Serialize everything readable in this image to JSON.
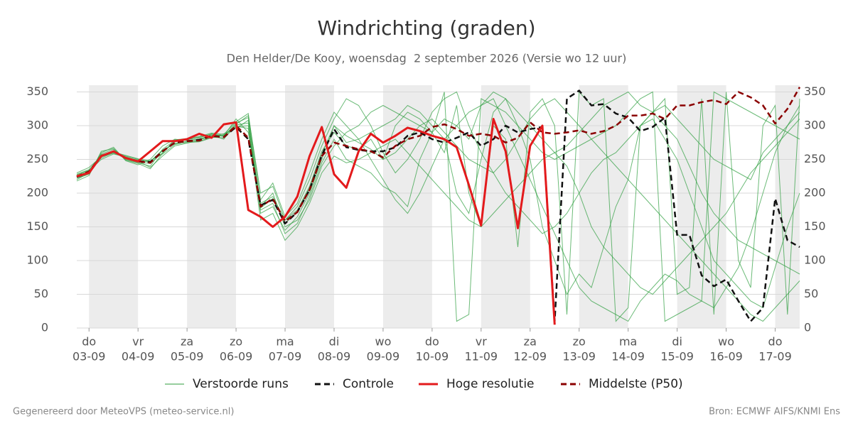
{
  "chart_data": {
    "type": "line",
    "title": "Windrichting (graden)",
    "subtitle": "Den Helder/De Kooy, woensdag  2 september 2026 (Versie wo 12 uur)",
    "footer_left": "Gegenereerd door MeteoVPS (meteo-service.nl)",
    "footer_right": "Bron: ECMWF AIFS/KNMI Ens",
    "xlim": [
      "2026-09-02T18:00",
      "2026-09-17T12:00"
    ],
    "x_start": "2026-09-02T18:00",
    "x_step_hours": 6,
    "xticks": [
      {
        "value": "2026-09-03T00:00",
        "label": [
          "do",
          "03-09"
        ]
      },
      {
        "value": "2026-09-04T00:00",
        "label": [
          "vr",
          "04-09"
        ]
      },
      {
        "value": "2026-09-05T00:00",
        "label": [
          "za",
          "05-09"
        ]
      },
      {
        "value": "2026-09-06T00:00",
        "label": [
          "zo",
          "06-09"
        ]
      },
      {
        "value": "2026-09-07T00:00",
        "label": [
          "ma",
          "07-09"
        ]
      },
      {
        "value": "2026-09-08T00:00",
        "label": [
          "di",
          "08-09"
        ]
      },
      {
        "value": "2026-09-09T00:00",
        "label": [
          "wo",
          "09-09"
        ]
      },
      {
        "value": "2026-09-10T00:00",
        "label": [
          "do",
          "10-09"
        ]
      },
      {
        "value": "2026-09-11T00:00",
        "label": [
          "vr",
          "11-09"
        ]
      },
      {
        "value": "2026-09-12T00:00",
        "label": [
          "za",
          "12-09"
        ]
      },
      {
        "value": "2026-09-13T00:00",
        "label": [
          "zo",
          "13-09"
        ]
      },
      {
        "value": "2026-09-14T00:00",
        "label": [
          "ma",
          "14-09"
        ]
      },
      {
        "value": "2026-09-15T00:00",
        "label": [
          "di",
          "15-09"
        ]
      },
      {
        "value": "2026-09-16T00:00",
        "label": [
          "wo",
          "16-09"
        ]
      },
      {
        "value": "2026-09-17T00:00",
        "label": [
          "do",
          "17-09"
        ]
      }
    ],
    "ylim": [
      0,
      360
    ],
    "yticks": [
      0,
      50,
      100,
      150,
      200,
      250,
      300,
      350
    ],
    "grid": true,
    "ensemble": {
      "name": "Verstoorde runs",
      "color": "#2e9e3e",
      "members": [
        [
          220,
          230,
          258,
          265,
          250,
          245,
          240,
          265,
          278,
          280,
          282,
          288,
          285,
          310,
          290,
          185,
          195,
          160,
          175,
          210,
          262,
          290,
          270,
          265,
          280,
          250,
          300,
          320,
          310,
          290,
          260,
          330,
          200,
          150,
          300,
          280,
          120,
          320,
          340,
          300,
          20,
          350,
          330,
          340,
          10,
          30,
          300,
          320,
          340,
          50,
          60,
          340,
          20,
          350,
          100,
          60,
          300,
          330,
          20,
          340
        ],
        [
          228,
          235,
          252,
          260,
          255,
          250,
          248,
          258,
          272,
          275,
          276,
          282,
          286,
          298,
          300,
          170,
          180,
          145,
          165,
          200,
          250,
          300,
          275,
          280,
          290,
          300,
          310,
          330,
          320,
          300,
          280,
          200,
          170,
          250,
          320,
          340,
          300,
          250,
          150,
          100,
          50,
          80,
          60,
          120,
          180,
          220,
          300,
          310,
          280,
          250,
          200,
          150,
          100,
          80,
          60,
          40,
          30,
          90,
          150,
          200
        ],
        [
          222,
          228,
          260,
          268,
          248,
          242,
          250,
          270,
          280,
          278,
          280,
          286,
          280,
          302,
          315,
          200,
          210,
          160,
          180,
          220,
          270,
          310,
          340,
          330,
          300,
          260,
          230,
          250,
          280,
          320,
          340,
          350,
          300,
          260,
          230,
          200,
          180,
          160,
          140,
          150,
          170,
          200,
          230,
          250,
          260,
          280,
          300,
          320,
          330,
          310,
          290,
          270,
          250,
          240,
          230,
          220,
          260,
          280,
          300,
          320
        ],
        [
          226,
          233,
          250,
          258,
          254,
          248,
          238,
          255,
          270,
          274,
          279,
          284,
          288,
          296,
          308,
          175,
          185,
          140,
          155,
          195,
          245,
          280,
          250,
          240,
          230,
          210,
          200,
          180,
          250,
          290,
          310,
          300,
          280,
          330,
          350,
          340,
          320,
          300,
          280,
          260,
          240,
          200,
          150,
          120,
          100,
          80,
          60,
          50,
          70,
          90,
          110,
          130,
          150,
          170,
          200,
          230,
          250,
          270,
          290,
          310
        ],
        [
          224,
          231,
          256,
          263,
          251,
          246,
          244,
          260,
          276,
          279,
          283,
          287,
          284,
          304,
          312,
          180,
          200,
          150,
          160,
          190,
          240,
          270,
          290,
          300,
          320,
          330,
          320,
          310,
          300,
          290,
          350,
          10,
          20,
          340,
          330,
          320,
          300,
          280,
          260,
          250,
          260,
          270,
          280,
          290,
          300,
          320,
          340,
          350,
          10,
          20,
          30,
          40,
          350,
          340,
          330,
          320,
          310,
          300,
          290,
          280
        ],
        [
          230,
          238,
          254,
          259,
          253,
          249,
          246,
          263,
          274,
          276,
          277,
          283,
          282,
          299,
          296,
          160,
          170,
          130,
          150,
          185,
          230,
          255,
          245,
          250,
          260,
          270,
          280,
          260,
          240,
          220,
          200,
          180,
          160,
          150,
          170,
          190,
          210,
          230,
          250,
          260,
          270,
          290,
          310,
          330,
          340,
          350,
          330,
          320,
          300,
          280,
          240,
          200,
          170,
          150,
          130,
          120,
          110,
          100,
          90,
          80
        ],
        [
          218,
          226,
          262,
          266,
          249,
          244,
          236,
          259,
          279,
          281,
          284,
          289,
          287,
          306,
          318,
          190,
          215,
          165,
          185,
          230,
          280,
          320,
          300,
          280,
          250,
          220,
          190,
          170,
          200,
          240,
          280,
          300,
          320,
          330,
          340,
          300,
          260,
          220,
          180,
          140,
          100,
          60,
          40,
          30,
          20,
          10,
          40,
          60,
          80,
          70,
          50,
          40,
          30,
          60,
          90,
          140,
          200,
          260,
          300,
          330
        ],
        [
          227,
          234,
          257,
          261,
          256,
          251,
          247,
          264,
          273,
          277,
          280,
          285,
          285,
          301,
          304,
          178,
          192,
          155,
          172,
          208,
          258,
          300,
          285,
          275,
          265,
          250,
          260,
          280,
          300,
          310,
          290,
          270,
          250,
          240,
          230,
          250,
          280,
          310,
          330,
          340,
          320,
          300,
          280,
          260,
          240,
          220,
          200,
          180,
          160,
          140,
          120,
          100,
          80,
          60,
          40,
          20,
          10,
          30,
          50,
          70
        ]
      ]
    },
    "series": [
      {
        "name": "Controle",
        "color": "#111111",
        "dash": true,
        "values": [
          224,
          230,
          255,
          262,
          252,
          247,
          246,
          262,
          275,
          277,
          279,
          285,
          283,
          298,
          280,
          182,
          190,
          155,
          172,
          205,
          256,
          295,
          268,
          264,
          262,
          262,
          268,
          285,
          290,
          280,
          275,
          282,
          290,
          270,
          280,
          300,
          290,
          295,
          298,
          10,
          340,
          352,
          330,
          332,
          318,
          312,
          292,
          298,
          312,
          138,
          138,
          78,
          62,
          72,
          40,
          10,
          30,
          192,
          130,
          120
        ]
      },
      {
        "name": "Hoge resolutie",
        "color": "#e31a1c",
        "dash": false,
        "values": [
          225,
          230,
          255,
          262,
          252,
          247,
          262,
          277,
          277,
          280,
          288,
          282,
          302,
          305,
          175,
          165,
          150,
          165,
          195,
          255,
          298,
          228,
          208,
          262,
          288,
          275,
          285,
          297,
          292,
          285,
          280,
          268,
          212,
          152,
          310,
          262,
          148,
          270,
          300,
          5,
          null,
          null,
          null,
          null,
          null,
          null,
          null,
          null,
          null,
          null,
          null,
          null,
          null,
          null,
          null,
          null,
          null,
          null,
          null,
          null
        ]
      },
      {
        "name": "Middelste (P50)",
        "color": "#8b0000",
        "dash": true,
        "values": [
          225,
          232,
          255,
          262,
          252,
          247,
          245,
          262,
          275,
          277,
          278,
          285,
          283,
          300,
          282,
          180,
          192,
          158,
          172,
          205,
          255,
          275,
          270,
          265,
          262,
          253,
          270,
          280,
          285,
          298,
          302,
          295,
          285,
          288,
          285,
          275,
          282,
          305,
          290,
          288,
          290,
          293,
          288,
          292,
          300,
          315,
          315,
          318,
          310,
          330,
          330,
          335,
          338,
          332,
          350,
          342,
          330,
          303,
          325,
          357
        ]
      }
    ]
  }
}
